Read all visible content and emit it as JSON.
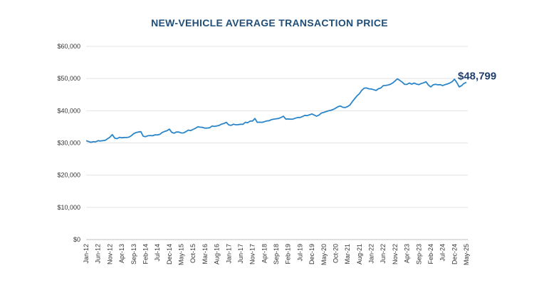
{
  "colors": {
    "title": "#1f4e79",
    "line": "#2b86c9",
    "callout": "#1f3f6e"
  },
  "chart_data": {
    "type": "line",
    "title": "NEW-VEHICLE AVERAGE TRANSACTION PRICE",
    "xlabel": "",
    "ylabel": "",
    "ylim": [
      0,
      60000
    ],
    "yticks": [
      {
        "value": 0,
        "label": "$0"
      },
      {
        "value": 10000,
        "label": "$10,000"
      },
      {
        "value": 20000,
        "label": "$20,000"
      },
      {
        "value": 30000,
        "label": "$30,000"
      },
      {
        "value": 40000,
        "label": "$40,000"
      },
      {
        "value": 50000,
        "label": "$50,000"
      },
      {
        "value": 60000,
        "label": "$60,000"
      }
    ],
    "grid": true,
    "xticks": [
      "Jan-12",
      "Jun-12",
      "Nov-12",
      "Apr-13",
      "Sep-13",
      "Feb-14",
      "Jul-14",
      "Dec-14",
      "May-15",
      "Oct-15",
      "Mar-16",
      "Aug-16",
      "Jan-17",
      "Jun-17",
      "Nov-17",
      "Apr-18",
      "Sep-18",
      "Feb-19",
      "Jul-19",
      "Dec-19",
      "May-20",
      "Oct-20",
      "Mar-21",
      "Aug-21",
      "Jan-22",
      "Jun-22",
      "Nov-22",
      "Apr-23",
      "Sep-23",
      "Feb-24",
      "Jul-24",
      "Dec-24",
      "May-25"
    ],
    "anchors": [
      [
        "Jan-12",
        30700
      ],
      [
        "Mar-12",
        30200
      ],
      [
        "Jun-12",
        30700
      ],
      [
        "Sep-12",
        30800
      ],
      [
        "Nov-12",
        31800
      ],
      [
        "Dec-12",
        32600
      ],
      [
        "Jan-13",
        31500
      ],
      [
        "Apr-13",
        31600
      ],
      [
        "Jul-13",
        31800
      ],
      [
        "Sep-13",
        32900
      ],
      [
        "Dec-13",
        33500
      ],
      [
        "Jan-14",
        32100
      ],
      [
        "Apr-14",
        32300
      ],
      [
        "Jul-14",
        32500
      ],
      [
        "Dec-14",
        34300
      ],
      [
        "Jan-15",
        33300
      ],
      [
        "May-15",
        33100
      ],
      [
        "Oct-15",
        34200
      ],
      [
        "Dec-15",
        35000
      ],
      [
        "Mar-16",
        34600
      ],
      [
        "Aug-16",
        35300
      ],
      [
        "Dec-16",
        36400
      ],
      [
        "Jan-17",
        35600
      ],
      [
        "Jun-17",
        35800
      ],
      [
        "Nov-17",
        36800
      ],
      [
        "Dec-17",
        37600
      ],
      [
        "Jan-18",
        36400
      ],
      [
        "Apr-18",
        36600
      ],
      [
        "Sep-18",
        37500
      ],
      [
        "Dec-18",
        38300
      ],
      [
        "Jan-19",
        37400
      ],
      [
        "Jul-19",
        37900
      ],
      [
        "Dec-19",
        39000
      ],
      [
        "Feb-20",
        38300
      ],
      [
        "May-20",
        39500
      ],
      [
        "Oct-20",
        40800
      ],
      [
        "Dec-20",
        41500
      ],
      [
        "Feb-21",
        41000
      ],
      [
        "Apr-21",
        41800
      ],
      [
        "Aug-21",
        45300
      ],
      [
        "Oct-21",
        47000
      ],
      [
        "Dec-21",
        46800
      ],
      [
        "Mar-22",
        46300
      ],
      [
        "Jun-22",
        47800
      ],
      [
        "Sep-22",
        48200
      ],
      [
        "Dec-22",
        49900
      ],
      [
        "Mar-23",
        48200
      ],
      [
        "Jul-23",
        48600
      ],
      [
        "Sep-23",
        48100
      ],
      [
        "Dec-23",
        49000
      ],
      [
        "Feb-24",
        47400
      ],
      [
        "Apr-24",
        48200
      ],
      [
        "Jul-24",
        47800
      ],
      [
        "Oct-24",
        48600
      ],
      [
        "Dec-24",
        49800
      ],
      [
        "Feb-25",
        47400
      ],
      [
        "Mar-25",
        47800
      ],
      [
        "Apr-25",
        48500
      ],
      [
        "May-25",
        48799
      ]
    ],
    "annotations": [
      {
        "x": "May-25",
        "y": 48799,
        "label": "$48,799"
      }
    ]
  }
}
